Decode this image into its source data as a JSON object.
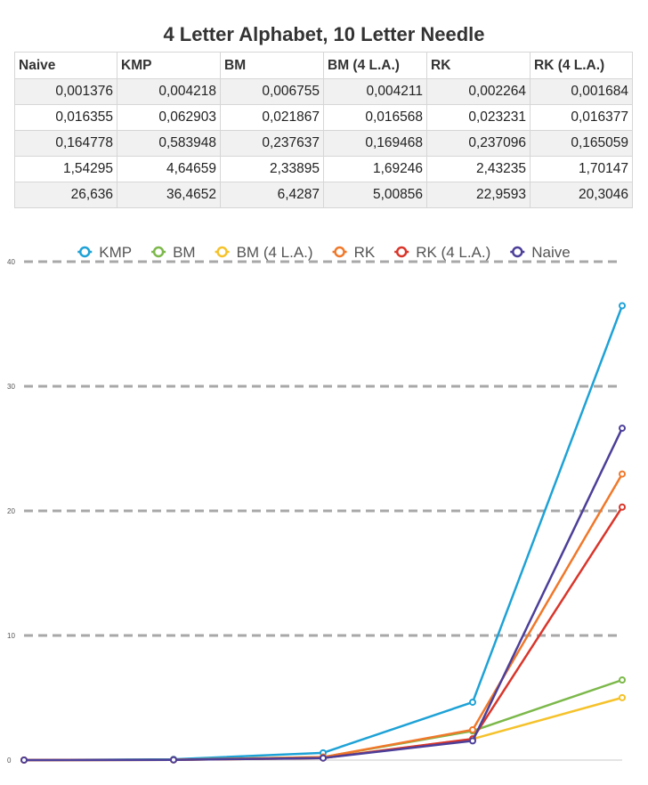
{
  "title": "4 Letter Alphabet, 10 Letter Needle",
  "table": {
    "headers": [
      "Naive",
      "KMP",
      "BM",
      "BM (4 L.A.)",
      "RK",
      "RK (4 L.A.)"
    ],
    "rows": [
      [
        "0,001376",
        "0,004218",
        "0,006755",
        "0,004211",
        "0,002264",
        "0,001684"
      ],
      [
        "0,016355",
        "0,062903",
        "0,021867",
        "0,016568",
        "0,023231",
        "0,016377"
      ],
      [
        "0,164778",
        "0,583948",
        "0,237637",
        "0,169468",
        "0,237096",
        "0,165059"
      ],
      [
        "1,54295",
        "4,64659",
        "2,33895",
        "1,69246",
        "2,43235",
        "1,70147"
      ],
      [
        "26,636",
        "36,4652",
        "6,4287",
        "5,00856",
        "22,9593",
        "20,3046"
      ]
    ]
  },
  "chart_data": {
    "type": "line",
    "legend_position": "top",
    "grid": true,
    "ylim": [
      0,
      40
    ],
    "yticks": [
      "0",
      "10",
      "20",
      "30",
      "40"
    ],
    "x": [
      1,
      2,
      3,
      4,
      5
    ],
    "series": [
      {
        "name": "KMP",
        "color": "#1ea2d6",
        "values": [
          0.004218,
          0.062903,
          0.583948,
          4.64659,
          36.4652
        ]
      },
      {
        "name": "BM",
        "color": "#7cb84a",
        "values": [
          0.006755,
          0.021867,
          0.237637,
          2.33895,
          6.4287
        ]
      },
      {
        "name": "BM (4 L.A.)",
        "color": "#f5c22b",
        "values": [
          0.004211,
          0.016568,
          0.169468,
          1.69246,
          5.00856
        ]
      },
      {
        "name": "RK",
        "color": "#f0782a",
        "values": [
          0.002264,
          0.023231,
          0.237096,
          2.43235,
          22.9593
        ]
      },
      {
        "name": "RK (4 L.A.)",
        "color": "#d9362b",
        "values": [
          0.001684,
          0.016377,
          0.165059,
          1.70147,
          20.3046
        ]
      },
      {
        "name": "Naive",
        "color": "#4c3f99",
        "values": [
          0.001376,
          0.016355,
          0.164778,
          1.54295,
          26.636
        ]
      }
    ]
  }
}
